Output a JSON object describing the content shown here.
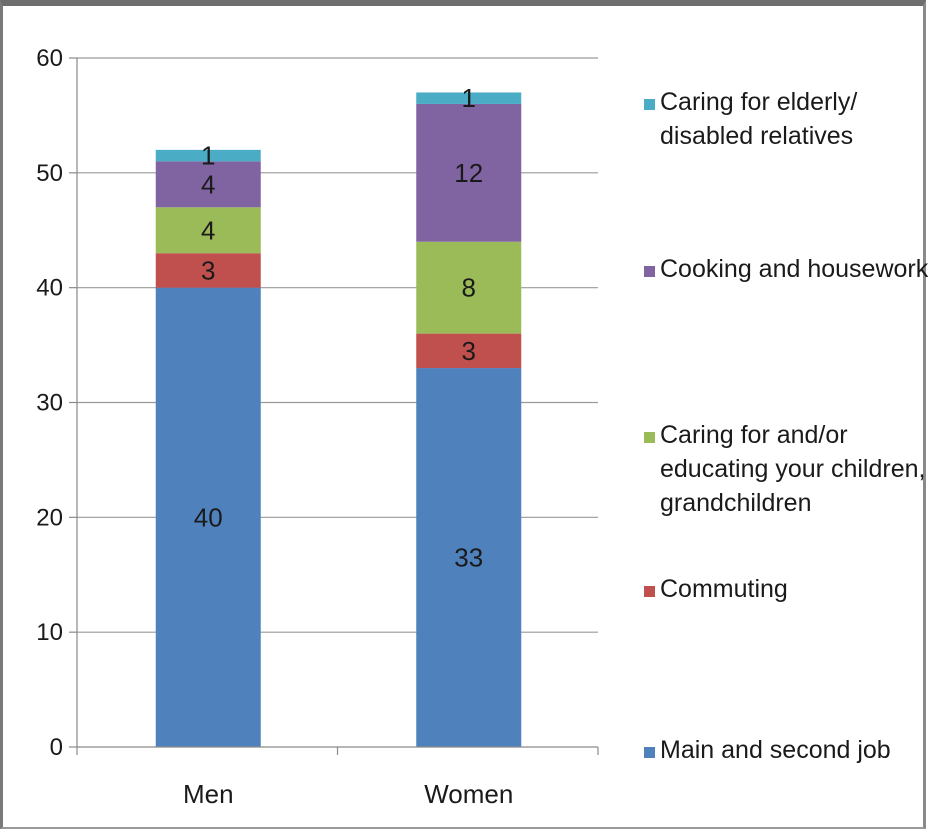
{
  "chart_data": {
    "type": "bar",
    "stacked": true,
    "categories": [
      "Men",
      "Women"
    ],
    "series": [
      {
        "name": "Main and second job",
        "values": [
          40,
          33
        ],
        "color": "#4f81bd"
      },
      {
        "name": "Commuting",
        "values": [
          3,
          3
        ],
        "color": "#c0504d"
      },
      {
        "name": "Caring for and/or educating your children, grandchildren",
        "values": [
          4,
          8
        ],
        "color": "#9bbb59"
      },
      {
        "name": "Cooking and housework",
        "values": [
          4,
          12
        ],
        "color": "#8064a2"
      },
      {
        "name": "Caring for elderly/ disabled relatives",
        "values": [
          1,
          1
        ],
        "color": "#4bacc6"
      }
    ],
    "ylim": [
      0,
      60
    ],
    "yticks": [
      0,
      10,
      20,
      30,
      40,
      50,
      60
    ],
    "grid": true,
    "legend_position": "right",
    "title": "",
    "xlabel": "",
    "ylabel": ""
  }
}
